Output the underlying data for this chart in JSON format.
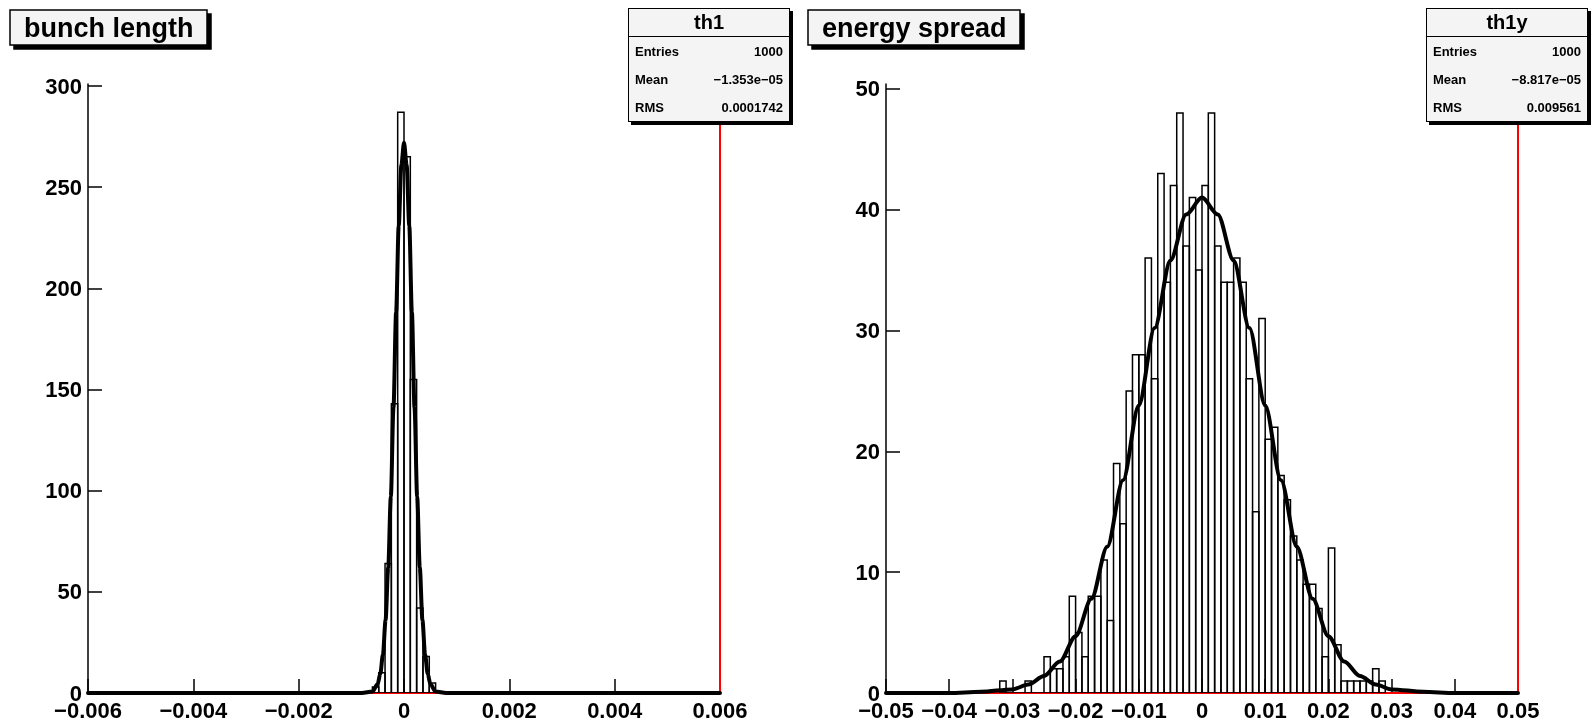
{
  "chart_data": [
    {
      "type": "histogram",
      "title": "bunch length",
      "color": "#000000",
      "bins": [
        -0.0006,
        -0.00048,
        -0.00036,
        -0.00024,
        -0.00012,
        0,
        0.00012,
        0.00024,
        0.00036,
        0.00048,
        0.0006
      ],
      "values": [
        3,
        10,
        64,
        143,
        287,
        265,
        155,
        42,
        18,
        5
      ],
      "series": [
        {
          "type": "line",
          "color": "#000000",
          "x": [
            -0.006,
            -0.0008,
            -0.0006,
            -0.0005,
            -0.00045,
            -0.0004,
            -0.00035,
            -0.0003,
            -0.00025,
            -0.0002,
            -0.00015,
            -0.0001,
            -5e-05,
            0,
            5e-05,
            0.0001,
            0.00015,
            0.0002,
            0.00025,
            0.0003,
            0.00035,
            0.0004,
            0.00045,
            0.0005,
            0.0006,
            0.0008,
            0.006
          ],
          "values": [
            0,
            0,
            0.7,
            4.4,
            9.5,
            19,
            36,
            62,
            97,
            141,
            188,
            231,
            261,
            272,
            261,
            231,
            188,
            141,
            97,
            62,
            36,
            19,
            9.5,
            4.4,
            0.7,
            0,
            0
          ]
        }
      ],
      "xlim": [
        -0.006,
        0.006
      ],
      "xticks": [
        {
          "value": -0.006,
          "label": "−0.006"
        },
        {
          "value": -0.004,
          "label": "−0.004"
        },
        {
          "value": -0.002,
          "label": "−0.002"
        },
        0,
        0.002,
        0.004,
        0.006
      ],
      "ylim": [
        0,
        301
      ],
      "yticks": [
        0,
        50,
        100,
        150,
        200,
        250,
        300
      ],
      "ref_lines": [
        {
          "axis": "y",
          "value": 0,
          "color": "#ff0000"
        },
        {
          "axis": "x",
          "value": 0.006,
          "color": "#ff0000"
        }
      ],
      "annotations": [
        "th1",
        "Entries",
        "1000",
        "Mean",
        "−1.353e−05",
        "RMS",
        "0.0001742"
      ]
    },
    {
      "type": "histogram",
      "title": "energy spread",
      "color": "#000000",
      "bins": [
        -0.032,
        -0.031,
        -0.03,
        -0.029,
        -0.028,
        -0.027,
        -0.026,
        -0.025,
        -0.024,
        -0.023,
        -0.022,
        -0.021,
        -0.02,
        -0.019,
        -0.018,
        -0.017,
        -0.016,
        -0.015,
        -0.014,
        -0.013,
        -0.012,
        -0.011,
        -0.01,
        -0.009,
        -0.008,
        -0.007,
        -0.006,
        -0.005,
        -0.004,
        -0.003,
        -0.002,
        -0.001,
        0,
        0.001,
        0.002,
        0.003,
        0.004,
        0.005,
        0.006,
        0.007,
        0.008,
        0.009,
        0.01,
        0.011,
        0.012,
        0.013,
        0.014,
        0.015,
        0.016,
        0.017,
        0.018,
        0.019,
        0.02,
        0.021,
        0.022,
        0.023,
        0.024,
        0.025,
        0.026,
        0.027,
        0.028,
        0.029
      ],
      "values": [
        1,
        0,
        0,
        0,
        1,
        0,
        0,
        3,
        2,
        2,
        3,
        8,
        5,
        3,
        8,
        8,
        11,
        6,
        19,
        14,
        25,
        28,
        28,
        36,
        26,
        43,
        34,
        42,
        48,
        37,
        41,
        35,
        42,
        48,
        37,
        34,
        34,
        36,
        34,
        26,
        15,
        31,
        21,
        22,
        18,
        16,
        13,
        11,
        9,
        9,
        7,
        3,
        12,
        4,
        1,
        1,
        1,
        1,
        1,
        2,
        1
      ],
      "series": [
        {
          "type": "line",
          "color": "#000000",
          "x": [
            -0.05,
            -0.04,
            -0.035,
            -0.03,
            -0.0275,
            -0.025,
            -0.0225,
            -0.02,
            -0.0175,
            -0.015,
            -0.0125,
            -0.01,
            -0.0075,
            -0.005,
            -0.0025,
            0,
            0.0025,
            0.005,
            0.0075,
            0.01,
            0.0125,
            0.015,
            0.0175,
            0.02,
            0.0225,
            0.025,
            0.0275,
            0.03,
            0.035,
            0.04,
            0.05
          ],
          "values": [
            0,
            0,
            0.1,
            0.3,
            0.7,
            1.4,
            2.6,
            4.7,
            7.8,
            12.1,
            17.6,
            23.8,
            30.2,
            35.8,
            39.6,
            41,
            39.6,
            35.8,
            30.2,
            23.8,
            17.6,
            12.1,
            7.8,
            4.7,
            2.6,
            1.4,
            0.7,
            0.3,
            0.1,
            0,
            0
          ]
        }
      ],
      "xlim": [
        -0.05,
        0.05
      ],
      "xticks": [
        {
          "value": -0.05,
          "label": "−0.05"
        },
        {
          "value": -0.04,
          "label": "−0.04"
        },
        {
          "value": -0.03,
          "label": "−0.03"
        },
        {
          "value": -0.02,
          "label": "−0.02"
        },
        {
          "value": -0.01,
          "label": "−0.01"
        },
        0,
        0.01,
        0.02,
        0.03,
        0.04,
        0.05
      ],
      "ylim": [
        0,
        50.4
      ],
      "yticks": [
        0,
        10,
        20,
        30,
        40,
        50
      ],
      "ref_lines": [
        {
          "axis": "y",
          "value": 0,
          "color": "#ff0000"
        },
        {
          "axis": "x",
          "value": 0.05,
          "color": "#ff0000"
        }
      ],
      "annotations": [
        "th1y",
        "Entries",
        "1000",
        "Mean",
        "−8.817e−05",
        "RMS",
        "0.009561"
      ]
    }
  ]
}
